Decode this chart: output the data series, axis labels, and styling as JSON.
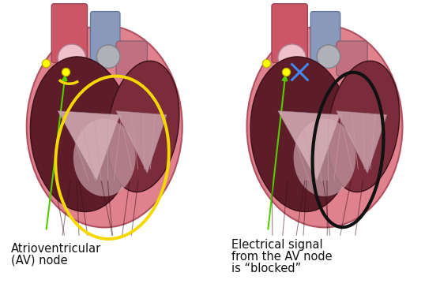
{
  "background_color": "#ffffff",
  "left_label_line1": "Atrioventricular",
  "left_label_line2": "(AV) node",
  "right_label_line1": "Electrical signal",
  "right_label_line2": "from the AV node",
  "right_label_line3": "is “blocked”",
  "dot_color": "#ffff00",
  "dot_edgecolor": "#bbaa00",
  "dot_size": 55,
  "arrow_color": "#55cc00",
  "label_fontsize": 10.5,
  "label_color": "#111111",
  "heart_outer_color": "#e0818e",
  "heart_outer_edge": "#b05060",
  "heart_inner_dark": "#5c1c28",
  "heart_inner_mid": "#7a2c3a",
  "heart_pink_light": "#d9909a",
  "vessel_red": "#cc5566",
  "vessel_blue": "#8899bb",
  "vessel_gray": "#9999aa",
  "yellow_signal": "#f5d800",
  "black_signal": "#111111",
  "blue_x": "#4488ee"
}
